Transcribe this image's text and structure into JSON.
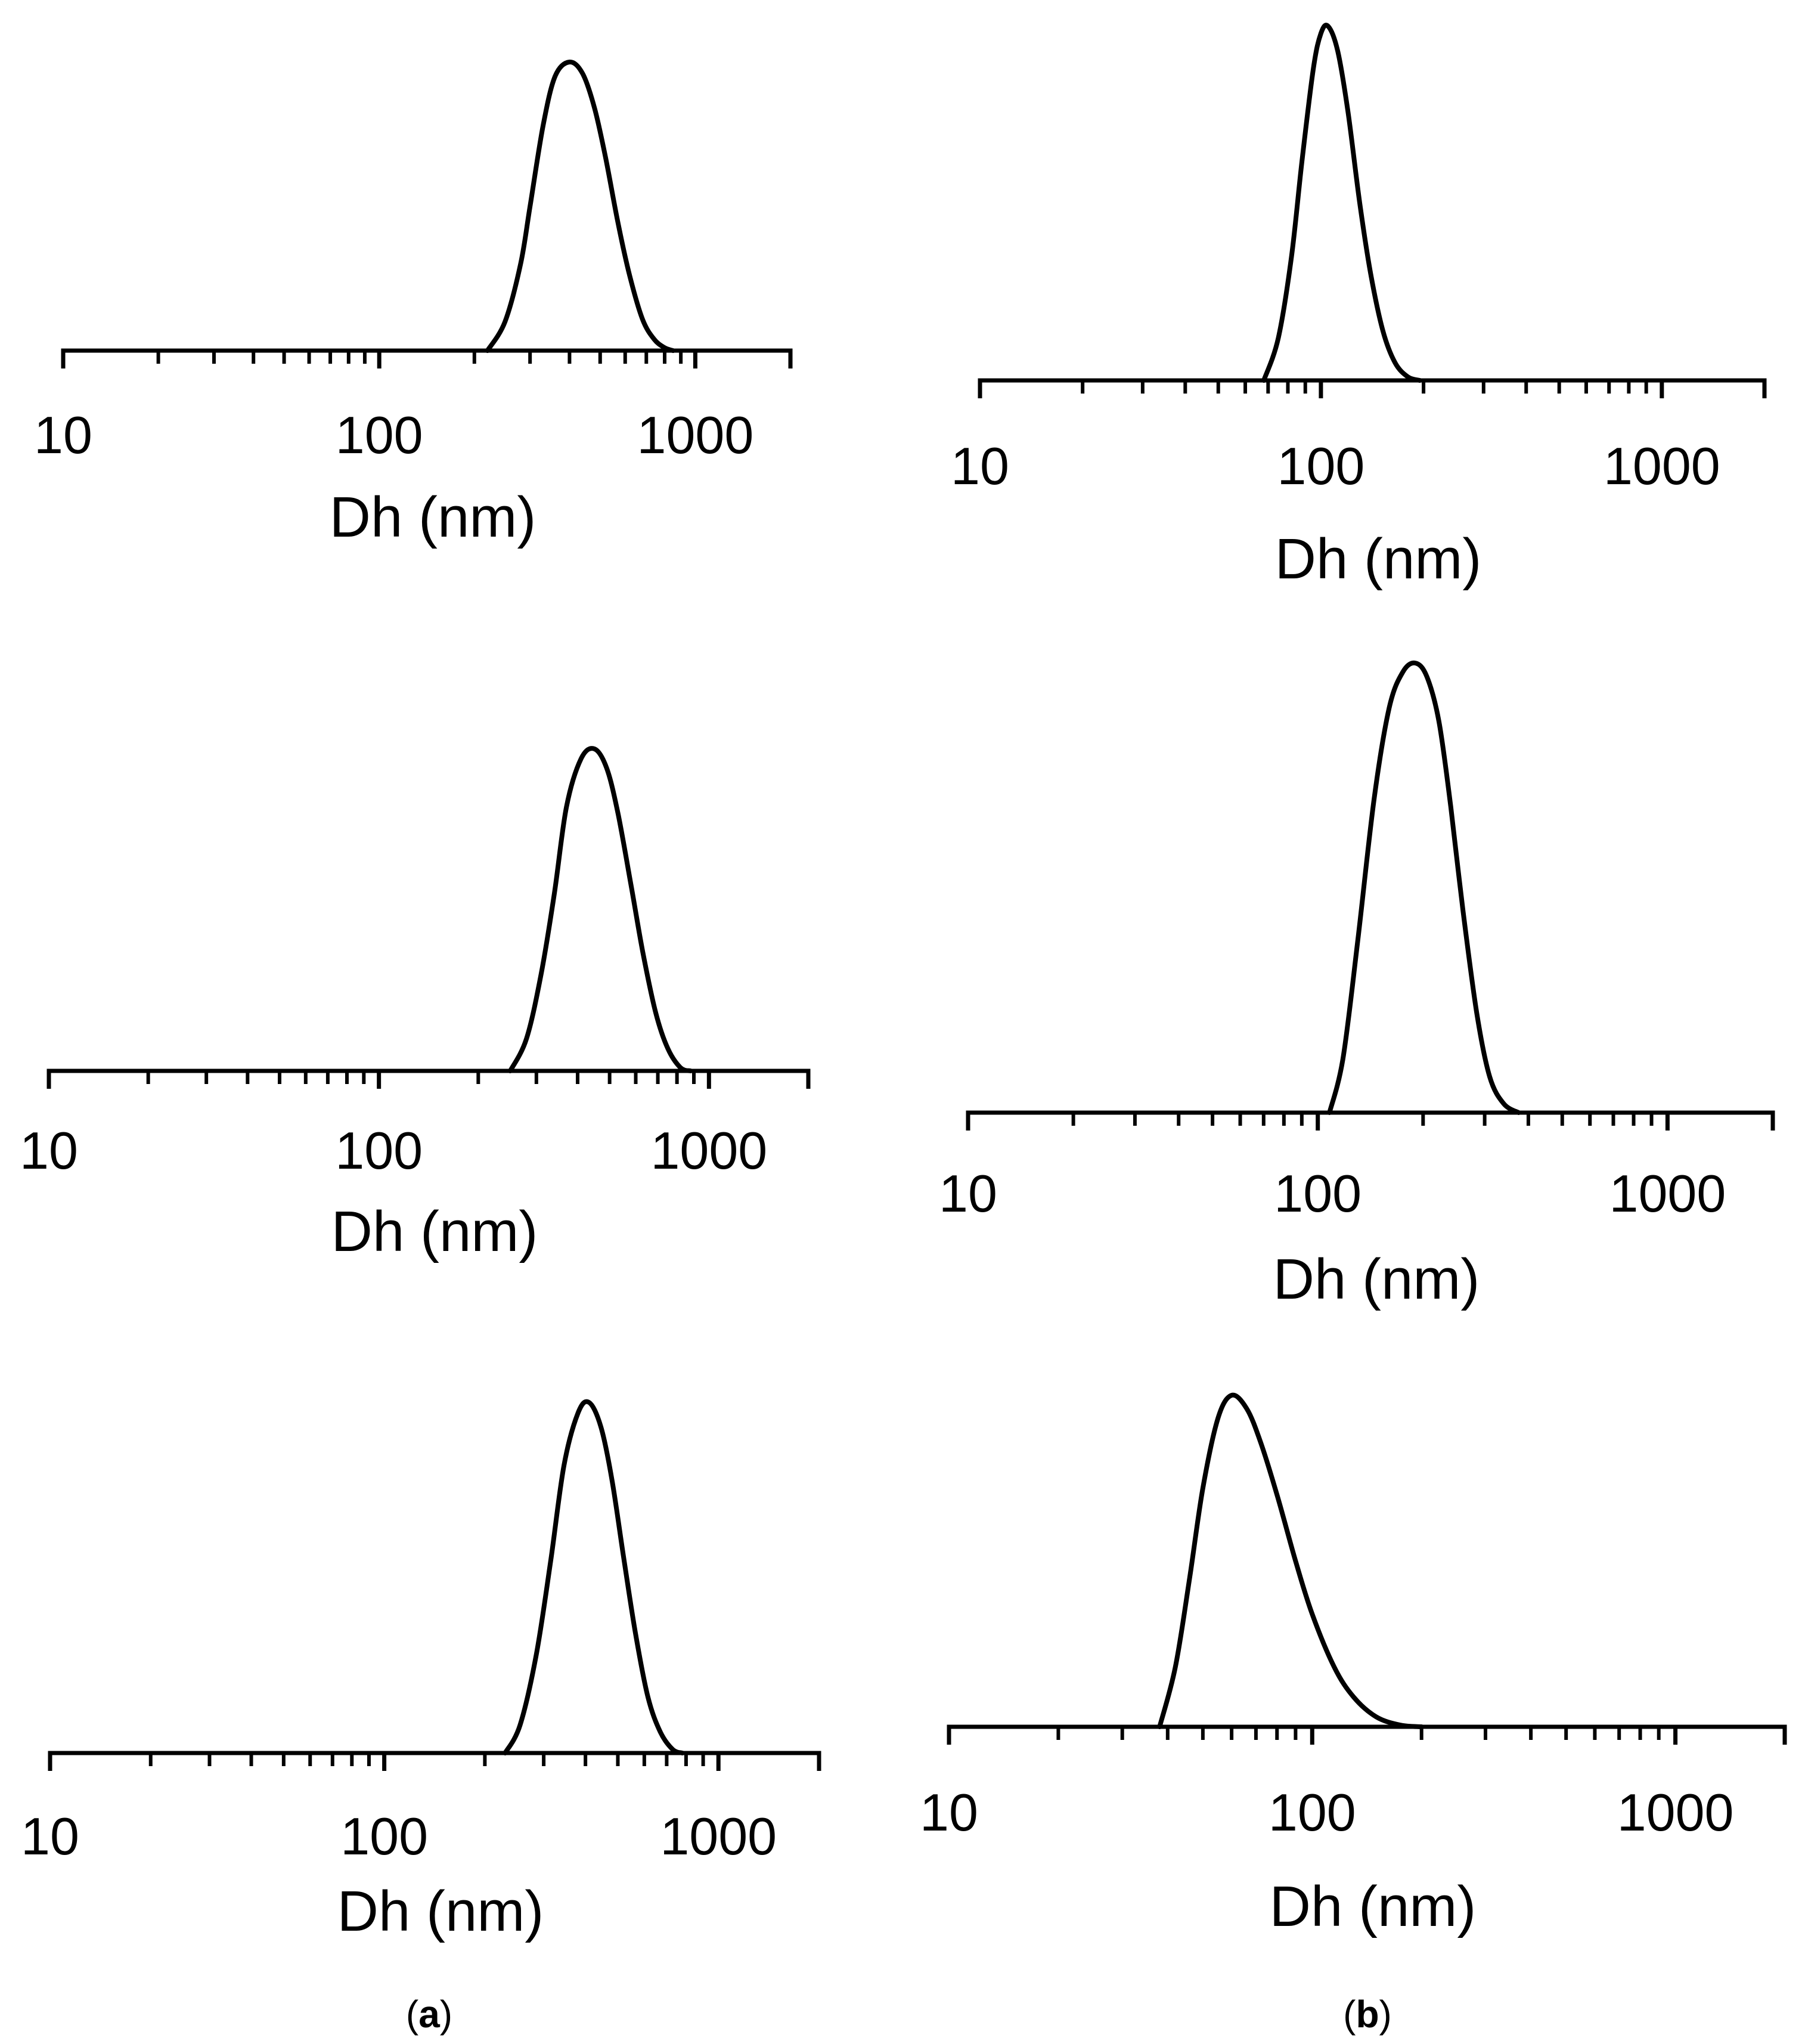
{
  "figure": {
    "label_a": "a",
    "label_b": "b",
    "paren_open": "(",
    "paren_close": ")"
  },
  "style": {
    "line_color": "#000000",
    "background": "#ffffff"
  },
  "chart_data": [
    {
      "id": "a1",
      "column": "a",
      "type": "line",
      "xscale": "log",
      "xlim": [
        10,
        2000
      ],
      "xlabel": "Dh (nm)",
      "xticks": [
        10,
        100,
        1000
      ],
      "xtick_labels": [
        "10",
        "100",
        "1000"
      ],
      "grid": false,
      "legend": "none",
      "series": [
        {
          "values_x": [
            220,
            250,
            280,
            300,
            330,
            360,
            400,
            440,
            480,
            520,
            570,
            620,
            680,
            740,
            800,
            850
          ],
          "values_y": [
            0,
            0.1,
            0.3,
            0.5,
            0.78,
            0.95,
            1.0,
            0.96,
            0.84,
            0.67,
            0.44,
            0.26,
            0.11,
            0.04,
            0.01,
            0
          ]
        }
      ]
    },
    {
      "id": "b1",
      "column": "b",
      "type": "line",
      "xscale": "log",
      "xlim": [
        10,
        2000
      ],
      "xlabel": "Dh (nm)",
      "xticks": [
        10,
        100,
        1000
      ],
      "xtick_labels": [
        "10",
        "100",
        "1000"
      ],
      "grid": false,
      "legend": "none",
      "series": [
        {
          "values_x": [
            68,
            75,
            82,
            88,
            95,
            100,
            105,
            112,
            120,
            130,
            140,
            152,
            165,
            180,
            195
          ],
          "values_y": [
            0,
            0.12,
            0.35,
            0.62,
            0.88,
            0.98,
            1.0,
            0.93,
            0.76,
            0.5,
            0.3,
            0.14,
            0.05,
            0.01,
            0
          ]
        }
      ]
    },
    {
      "id": "a2",
      "column": "a",
      "type": "line",
      "xscale": "log",
      "xlim": [
        10,
        2000
      ],
      "xlabel": "Dh (nm)",
      "xticks": [
        10,
        100,
        1000
      ],
      "xtick_labels": [
        "10",
        "100",
        "1000"
      ],
      "grid": false,
      "legend": "none",
      "series": [
        {
          "values_x": [
            250,
            280,
            310,
            340,
            370,
            410,
            450,
            490,
            530,
            580,
            630,
            690,
            750,
            820,
            880
          ],
          "values_y": [
            0,
            0.1,
            0.3,
            0.55,
            0.82,
            0.97,
            1.0,
            0.94,
            0.8,
            0.58,
            0.37,
            0.18,
            0.07,
            0.01,
            0
          ]
        }
      ]
    },
    {
      "id": "b2",
      "column": "b",
      "type": "line",
      "xscale": "log",
      "xlim": [
        10,
        2000
      ],
      "xlabel": "Dh (nm)",
      "xticks": [
        10,
        100,
        1000
      ],
      "xtick_labels": [
        "10",
        "100",
        "1000"
      ],
      "grid": false,
      "legend": "none",
      "series": [
        {
          "values_x": [
            108,
            118,
            130,
            145,
            160,
            175,
            190,
            205,
            222,
            240,
            260,
            285,
            310,
            340,
            375
          ],
          "values_y": [
            0,
            0.12,
            0.38,
            0.7,
            0.9,
            0.98,
            1.0,
            0.97,
            0.87,
            0.68,
            0.45,
            0.22,
            0.08,
            0.02,
            0
          ]
        }
      ]
    },
    {
      "id": "a3",
      "column": "a",
      "type": "line",
      "xscale": "log",
      "xlim": [
        10,
        2000
      ],
      "xlabel": "Dh (nm)",
      "xticks": [
        10,
        100,
        1000
      ],
      "xtick_labels": [
        "10",
        "100",
        "1000"
      ],
      "grid": false,
      "legend": "none",
      "series": [
        {
          "values_x": [
            230,
            255,
            285,
            315,
            345,
            380,
            410,
            445,
            480,
            520,
            565,
            615,
            670,
            730,
            780
          ],
          "values_y": [
            0,
            0.08,
            0.28,
            0.55,
            0.82,
            0.97,
            1.0,
            0.93,
            0.78,
            0.56,
            0.34,
            0.16,
            0.06,
            0.01,
            0
          ]
        }
      ]
    },
    {
      "id": "b3",
      "column": "b",
      "type": "line",
      "xscale": "log",
      "xlim": [
        10,
        2000
      ],
      "xlabel": "Dh (nm)",
      "xticks": [
        10,
        100,
        1000
      ],
      "xtick_labels": [
        "10",
        "100",
        "1000"
      ],
      "grid": false,
      "legend": "none",
      "series": [
        {
          "values_x": [
            38,
            42,
            46,
            50,
            55,
            60,
            66,
            72,
            80,
            90,
            100,
            115,
            130,
            150,
            175,
            200
          ],
          "values_y": [
            0,
            0.18,
            0.45,
            0.72,
            0.93,
            1.0,
            0.96,
            0.86,
            0.7,
            0.5,
            0.34,
            0.18,
            0.09,
            0.03,
            0.005,
            0
          ]
        }
      ]
    }
  ]
}
